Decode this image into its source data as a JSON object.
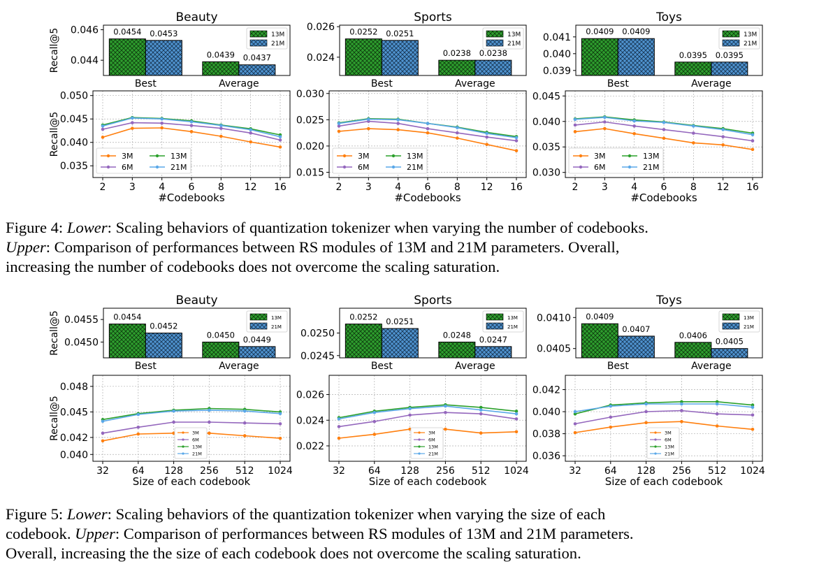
{
  "figures": [
    {
      "caption": {
        "label": "Figure 4: ",
        "lines": [
          {
            "pre": "",
            "it": "Lower",
            "post": ": Scaling behaviors of quantization tokenizer when varying the number of codebooks."
          },
          {
            "pre": "",
            "it": "Upper",
            "post": ": Comparison of performances between RS modules of 13M and 21M parameters. Overall,"
          },
          {
            "pre": "increasing the number of codebooks does not overcome the scaling saturation.",
            "it": "",
            "post": ""
          }
        ]
      }
    },
    {
      "caption": {
        "label": "Figure 5: ",
        "lines": [
          {
            "pre": "",
            "it": "Lower",
            "post": ": Scaling behaviors of the quantization tokenizer when varying the size of each"
          },
          {
            "pre": "codebook. ",
            "it": "Upper",
            "post": ": Comparison of performances between RS modules of 13M and 21M parameters."
          },
          {
            "pre": "Overall, increasing the the size of each codebook does not overcome the scaling saturation.",
            "it": "",
            "post": ""
          }
        ]
      }
    }
  ],
  "colors": {
    "m3": "#ff7f0e",
    "m6": "#9467bd",
    "m13": "#2ca02c",
    "m21": "#5aa8e8",
    "bar13": "#2e9e2e",
    "bar21": "#4f93cf"
  },
  "chart_data": [
    {
      "id": "f4-beauty-bar",
      "type": "bar",
      "title": "Beauty",
      "ylabel": "Recall@5",
      "categories": [
        "Best",
        "Average"
      ],
      "series": [
        {
          "name": "13M",
          "values": [
            0.0454,
            0.0439
          ]
        },
        {
          "name": "21M",
          "values": [
            0.0453,
            0.0437
          ]
        }
      ],
      "labels": [
        [
          "0.0454",
          "0.0439"
        ],
        [
          "0.0453",
          "0.0437"
        ]
      ],
      "ylim": [
        0.043,
        0.0463
      ],
      "yticks": [
        0.044,
        0.046
      ],
      "ytick_labels": [
        "0.044",
        "0.046"
      ],
      "legend": "top-right"
    },
    {
      "id": "f4-sports-bar",
      "type": "bar",
      "title": "Sports",
      "ylabel": "",
      "categories": [
        "Best",
        "Average"
      ],
      "series": [
        {
          "name": "13M",
          "values": [
            0.0252,
            0.0238
          ]
        },
        {
          "name": "21M",
          "values": [
            0.0251,
            0.0238
          ]
        }
      ],
      "labels": [
        [
          "0.0252",
          "0.0238"
        ],
        [
          "0.0251",
          "0.0238"
        ]
      ],
      "ylim": [
        0.0228,
        0.0261
      ],
      "yticks": [
        0.024,
        0.026
      ],
      "ytick_labels": [
        "0.024",
        "0.026"
      ],
      "legend": "top-right"
    },
    {
      "id": "f4-toys-bar",
      "type": "bar",
      "title": "Toys",
      "ylabel": "",
      "categories": [
        "Best",
        "Average"
      ],
      "series": [
        {
          "name": "13M",
          "values": [
            0.0409,
            0.0395
          ]
        },
        {
          "name": "21M",
          "values": [
            0.0409,
            0.0395
          ]
        }
      ],
      "labels": [
        [
          "0.0409",
          "0.0395"
        ],
        [
          "0.0409",
          "0.0395"
        ]
      ],
      "ylim": [
        0.0387,
        0.0417
      ],
      "yticks": [
        0.039,
        0.04,
        0.041
      ],
      "ytick_labels": [
        "0.039",
        "0.040",
        "0.041"
      ],
      "legend": "top-right"
    },
    {
      "id": "f4-beauty-line",
      "type": "line",
      "ylabel": "Recall@5",
      "xlabel": "#Codebooks",
      "x": [
        2,
        3,
        4,
        6,
        8,
        12,
        16
      ],
      "x_labels": [
        "2",
        "3",
        "4",
        "6",
        "8",
        "12",
        "16"
      ],
      "series": [
        {
          "name": "3M",
          "values": [
            0.0411,
            0.043,
            0.0431,
            0.0423,
            0.0413,
            0.0401,
            0.039
          ]
        },
        {
          "name": "6M",
          "values": [
            0.0428,
            0.0442,
            0.0441,
            0.0436,
            0.043,
            0.042,
            0.0405
          ]
        },
        {
          "name": "13M",
          "values": [
            0.0437,
            0.0453,
            0.0451,
            0.0446,
            0.0437,
            0.0429,
            0.0416
          ]
        },
        {
          "name": "21M",
          "values": [
            0.0435,
            0.0452,
            0.045,
            0.0444,
            0.0436,
            0.0427,
            0.0412
          ]
        }
      ],
      "ylim": [
        0.0325,
        0.051
      ],
      "yticks": [
        0.035,
        0.04,
        0.045,
        0.05
      ],
      "ytick_labels": [
        "0.035",
        "0.040",
        "0.045",
        "0.050"
      ],
      "legend": "lower-left",
      "grid": true
    },
    {
      "id": "f4-sports-line",
      "type": "line",
      "ylabel": "",
      "xlabel": "#Codebooks",
      "x": [
        2,
        3,
        4,
        6,
        8,
        12,
        16
      ],
      "x_labels": [
        "2",
        "3",
        "4",
        "6",
        "8",
        "12",
        "16"
      ],
      "series": [
        {
          "name": "3M",
          "values": [
            0.0228,
            0.0233,
            0.0231,
            0.0225,
            0.0215,
            0.0203,
            0.0191
          ]
        },
        {
          "name": "6M",
          "values": [
            0.0238,
            0.0247,
            0.0243,
            0.0233,
            0.0225,
            0.0217,
            0.021
          ]
        },
        {
          "name": "13M",
          "values": [
            0.0244,
            0.0252,
            0.0251,
            0.0243,
            0.0236,
            0.0226,
            0.0218
          ]
        },
        {
          "name": "21M",
          "values": [
            0.0243,
            0.0251,
            0.025,
            0.0243,
            0.0235,
            0.0224,
            0.0216
          ]
        }
      ],
      "ylim": [
        0.014,
        0.0305
      ],
      "yticks": [
        0.015,
        0.02,
        0.025,
        0.03
      ],
      "ytick_labels": [
        "0.015",
        "0.020",
        "0.025",
        "0.030"
      ],
      "legend": "lower-left",
      "grid": true
    },
    {
      "id": "f4-toys-line",
      "type": "line",
      "ylabel": "",
      "xlabel": "#Codebooks",
      "x": [
        2,
        3,
        4,
        6,
        8,
        12,
        16
      ],
      "x_labels": [
        "2",
        "3",
        "4",
        "6",
        "8",
        "12",
        "16"
      ],
      "series": [
        {
          "name": "3M",
          "values": [
            0.038,
            0.0386,
            0.0376,
            0.0367,
            0.0358,
            0.0354,
            0.0345
          ]
        },
        {
          "name": "6M",
          "values": [
            0.0393,
            0.0399,
            0.0391,
            0.0384,
            0.0377,
            0.037,
            0.0362
          ]
        },
        {
          "name": "13M",
          "values": [
            0.0405,
            0.0409,
            0.0403,
            0.0399,
            0.0392,
            0.0386,
            0.0377
          ]
        },
        {
          "name": "21M",
          "values": [
            0.0404,
            0.0408,
            0.0401,
            0.0398,
            0.0391,
            0.0384,
            0.0374
          ]
        }
      ],
      "ylim": [
        0.029,
        0.046
      ],
      "yticks": [
        0.03,
        0.035,
        0.04,
        0.045
      ],
      "ytick_labels": [
        "0.030",
        "0.035",
        "0.040",
        "0.045"
      ],
      "legend": "lower-left",
      "grid": true
    },
    {
      "id": "f5-beauty-bar",
      "type": "bar",
      "title": "Beauty",
      "ylabel": "Recall@5",
      "categories": [
        "Best",
        "Average"
      ],
      "series": [
        {
          "name": "13M",
          "values": [
            0.0454,
            0.045
          ]
        },
        {
          "name": "21M",
          "values": [
            0.0452,
            0.0449
          ]
        }
      ],
      "labels": [
        [
          "0.0454",
          "0.0450"
        ],
        [
          "0.0452",
          "0.0449"
        ]
      ],
      "ylim": [
        0.04465,
        0.04575
      ],
      "yticks": [
        0.045,
        0.0455
      ],
      "ytick_labels": [
        "0.0450",
        "0.0455"
      ],
      "legend": "top-right"
    },
    {
      "id": "f5-sports-bar",
      "type": "bar",
      "title": "Sports",
      "ylabel": "",
      "categories": [
        "Best",
        "Average"
      ],
      "series": [
        {
          "name": "13M",
          "values": [
            0.0252,
            0.0248
          ]
        },
        {
          "name": "21M",
          "values": [
            0.0251,
            0.0247
          ]
        }
      ],
      "labels": [
        [
          "0.0252",
          "0.0248"
        ],
        [
          "0.0251",
          "0.0247"
        ]
      ],
      "ylim": [
        0.02445,
        0.02555
      ],
      "yticks": [
        0.0245,
        0.025
      ],
      "ytick_labels": [
        "0.0245",
        "0.0250"
      ],
      "legend": "top-right"
    },
    {
      "id": "f5-toys-bar",
      "type": "bar",
      "title": "Toys",
      "ylabel": "",
      "categories": [
        "Best",
        "Average"
      ],
      "series": [
        {
          "name": "13M",
          "values": [
            0.0409,
            0.0406
          ]
        },
        {
          "name": "21M",
          "values": [
            0.0407,
            0.0405
          ]
        }
      ],
      "labels": [
        [
          "0.0409",
          "0.0406"
        ],
        [
          "0.0407",
          "0.0405"
        ]
      ],
      "ylim": [
        0.04035,
        0.04115
      ],
      "yticks": [
        0.0405,
        0.041
      ],
      "ytick_labels": [
        "0.0405",
        "0.0410"
      ],
      "legend": "top-right"
    },
    {
      "id": "f5-beauty-line",
      "type": "line",
      "ylabel": "Recall@5",
      "xlabel": "Size of each codebook",
      "x": [
        32,
        64,
        128,
        256,
        512,
        1024
      ],
      "x_labels": [
        "32",
        "64",
        "128",
        "256",
        "512",
        "1024"
      ],
      "series": [
        {
          "name": "3M",
          "values": [
            0.0416,
            0.0424,
            0.0425,
            0.0425,
            0.0422,
            0.0419
          ]
        },
        {
          "name": "6M",
          "values": [
            0.0425,
            0.0432,
            0.0438,
            0.0438,
            0.0437,
            0.0436
          ]
        },
        {
          "name": "13M",
          "values": [
            0.0441,
            0.0448,
            0.0452,
            0.0454,
            0.0453,
            0.045
          ]
        },
        {
          "name": "21M",
          "values": [
            0.0439,
            0.0447,
            0.0451,
            0.0452,
            0.0451,
            0.0448
          ]
        }
      ],
      "ylim": [
        0.0392,
        0.0493
      ],
      "yticks": [
        0.04,
        0.042,
        0.045,
        0.048
      ],
      "ytick_labels": [
        "0.040",
        "0.042",
        "0.045",
        "0.048"
      ],
      "legend": "lower-center",
      "grid": true
    },
    {
      "id": "f5-sports-line",
      "type": "line",
      "ylabel": "",
      "xlabel": "Size of each codebook",
      "x": [
        32,
        64,
        128,
        256,
        512,
        1024
      ],
      "x_labels": [
        "32",
        "64",
        "128",
        "256",
        "512",
        "1024"
      ],
      "series": [
        {
          "name": "3M",
          "values": [
            0.0226,
            0.0229,
            0.0233,
            0.0233,
            0.023,
            0.0231
          ]
        },
        {
          "name": "6M",
          "values": [
            0.0235,
            0.0239,
            0.0244,
            0.0246,
            0.0245,
            0.0241
          ]
        },
        {
          "name": "13M",
          "values": [
            0.0242,
            0.0247,
            0.025,
            0.0252,
            0.025,
            0.0247
          ]
        },
        {
          "name": "21M",
          "values": [
            0.0241,
            0.0246,
            0.0249,
            0.0251,
            0.0248,
            0.0245
          ]
        }
      ],
      "ylim": [
        0.0208,
        0.0275
      ],
      "yticks": [
        0.022,
        0.024,
        0.026
      ],
      "ytick_labels": [
        "0.022",
        "0.024",
        "0.026"
      ],
      "legend": "lower-center",
      "grid": true
    },
    {
      "id": "f5-toys-line",
      "type": "line",
      "ylabel": "",
      "xlabel": "Size of each codebook",
      "x": [
        32,
        64,
        128,
        256,
        512,
        1024
      ],
      "x_labels": [
        "32",
        "64",
        "128",
        "256",
        "512",
        "1024"
      ],
      "series": [
        {
          "name": "3M",
          "values": [
            0.0381,
            0.0386,
            0.039,
            0.0391,
            0.0387,
            0.0384
          ]
        },
        {
          "name": "6M",
          "values": [
            0.0389,
            0.0395,
            0.04,
            0.0401,
            0.0398,
            0.0397
          ]
        },
        {
          "name": "13M",
          "values": [
            0.0398,
            0.0406,
            0.0408,
            0.0409,
            0.0409,
            0.0406
          ]
        },
        {
          "name": "21M",
          "values": [
            0.04,
            0.0405,
            0.0407,
            0.0407,
            0.0407,
            0.0404
          ]
        }
      ],
      "ylim": [
        0.0355,
        0.0433
      ],
      "yticks": [
        0.036,
        0.038,
        0.04,
        0.042
      ],
      "ytick_labels": [
        "0.036",
        "0.038",
        "0.040",
        "0.042"
      ],
      "legend": "lower-center",
      "grid": true
    }
  ]
}
